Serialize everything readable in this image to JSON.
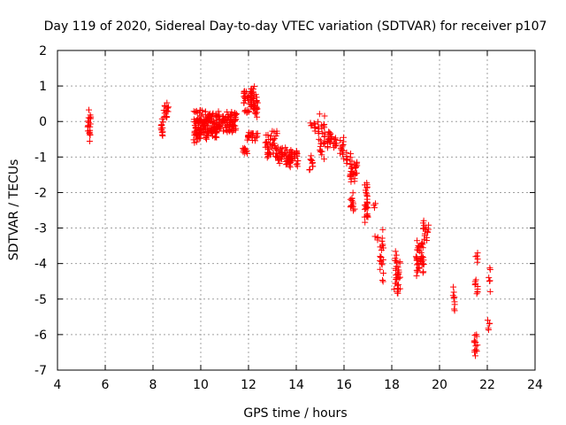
{
  "chart_data": {
    "type": "scatter",
    "title": "Day 119 of 2020, Sidereal Day-to-day VTEC variation (SDTVAR) for receiver p107",
    "xlabel": "GPS time / hours",
    "ylabel": "SDTVAR / TECUs",
    "xlim": [
      4,
      24
    ],
    "ylim": [
      -7,
      2
    ],
    "xticks": [
      "4",
      "6",
      "8",
      "10",
      "12",
      "14",
      "16",
      "18",
      "20",
      "22",
      "24"
    ],
    "yticks": [
      "2",
      "1",
      "0",
      "-1",
      "-2",
      "-3",
      "-4",
      "-5",
      "-6",
      "-7"
    ],
    "grid": true,
    "marker": "+",
    "series_color": "#ff0000",
    "clusters": [
      {
        "x_range": [
          5.25,
          5.4
        ],
        "y_range": [
          -0.65,
          0.4
        ],
        "n": 22
      },
      {
        "x_range": [
          8.3,
          8.45
        ],
        "y_range": [
          -0.45,
          0.1
        ],
        "n": 14
      },
      {
        "x_range": [
          8.45,
          8.65
        ],
        "y_range": [
          0.0,
          0.55
        ],
        "n": 14
      },
      {
        "x_range": [
          9.7,
          10.1
        ],
        "y_range": [
          -0.7,
          0.4
        ],
        "n": 70
      },
      {
        "x_range": [
          10.1,
          10.8
        ],
        "y_range": [
          -0.55,
          0.35
        ],
        "n": 110
      },
      {
        "x_range": [
          10.8,
          11.5
        ],
        "y_range": [
          -0.35,
          0.3
        ],
        "n": 80
      },
      {
        "x_range": [
          11.75,
          11.95
        ],
        "y_range": [
          -0.95,
          -0.7
        ],
        "n": 10
      },
      {
        "x_range": [
          11.8,
          12.4
        ],
        "y_range": [
          0.1,
          1.05
        ],
        "n": 70
      },
      {
        "x_range": [
          11.95,
          12.4
        ],
        "y_range": [
          -0.55,
          -0.25
        ],
        "n": 20
      },
      {
        "x_range": [
          12.7,
          13.2
        ],
        "y_range": [
          -1.15,
          -0.2
        ],
        "n": 45
      },
      {
        "x_range": [
          13.2,
          14.1
        ],
        "y_range": [
          -1.3,
          -0.7
        ],
        "n": 70
      },
      {
        "x_range": [
          14.55,
          14.75
        ],
        "y_range": [
          -1.45,
          -0.9
        ],
        "n": 12
      },
      {
        "x_range": [
          14.55,
          14.8
        ],
        "y_range": [
          -0.3,
          0.05
        ],
        "n": 8
      },
      {
        "x_range": [
          14.9,
          15.2
        ],
        "y_range": [
          -1.15,
          0.3
        ],
        "n": 30
      },
      {
        "x_range": [
          15.3,
          15.5
        ],
        "y_range": [
          -0.75,
          -0.2
        ],
        "n": 16
      },
      {
        "x_range": [
          15.55,
          15.7
        ],
        "y_range": [
          -0.8,
          -0.4
        ],
        "n": 10
      },
      {
        "x_range": [
          15.8,
          16.0
        ],
        "y_range": [
          -1.1,
          -0.4
        ],
        "n": 14
      },
      {
        "x_range": [
          16.1,
          16.3
        ],
        "y_range": [
          -1.25,
          -0.85
        ],
        "n": 10
      },
      {
        "x_range": [
          16.25,
          16.55
        ],
        "y_range": [
          -1.7,
          -1.1
        ],
        "n": 30
      },
      {
        "x_range": [
          16.25,
          16.45
        ],
        "y_range": [
          -2.6,
          -2.0
        ],
        "n": 14
      },
      {
        "x_range": [
          16.85,
          17.0
        ],
        "y_range": [
          -2.9,
          -1.6
        ],
        "n": 28
      },
      {
        "x_range": [
          17.2,
          17.35
        ],
        "y_range": [
          -2.45,
          -2.3
        ],
        "n": 3
      },
      {
        "x_range": [
          17.25,
          17.45
        ],
        "y_range": [
          -3.35,
          -3.2
        ],
        "n": 4
      },
      {
        "x_range": [
          17.5,
          17.65
        ],
        "y_range": [
          -4.6,
          -3.0
        ],
        "n": 20
      },
      {
        "x_range": [
          18.1,
          18.35
        ],
        "y_range": [
          -5.1,
          -3.5
        ],
        "n": 34
      },
      {
        "x_range": [
          19.0,
          19.35
        ],
        "y_range": [
          -4.4,
          -3.3
        ],
        "n": 45
      },
      {
        "x_range": [
          19.3,
          19.55
        ],
        "y_range": [
          -3.4,
          -2.75
        ],
        "n": 16
      },
      {
        "x_range": [
          20.55,
          20.65
        ],
        "y_range": [
          -5.35,
          -4.65
        ],
        "n": 9
      },
      {
        "x_range": [
          21.45,
          21.6
        ],
        "y_range": [
          -6.6,
          -5.95
        ],
        "n": 14
      },
      {
        "x_range": [
          21.45,
          21.6
        ],
        "y_range": [
          -4.95,
          -4.35
        ],
        "n": 9
      },
      {
        "x_range": [
          21.5,
          21.6
        ],
        "y_range": [
          -4.0,
          -3.65
        ],
        "n": 5
      },
      {
        "x_range": [
          22.0,
          22.15
        ],
        "y_range": [
          -5.95,
          -5.5
        ],
        "n": 5
      },
      {
        "x_range": [
          22.05,
          22.15
        ],
        "y_range": [
          -4.8,
          -4.05
        ],
        "n": 6
      }
    ]
  }
}
